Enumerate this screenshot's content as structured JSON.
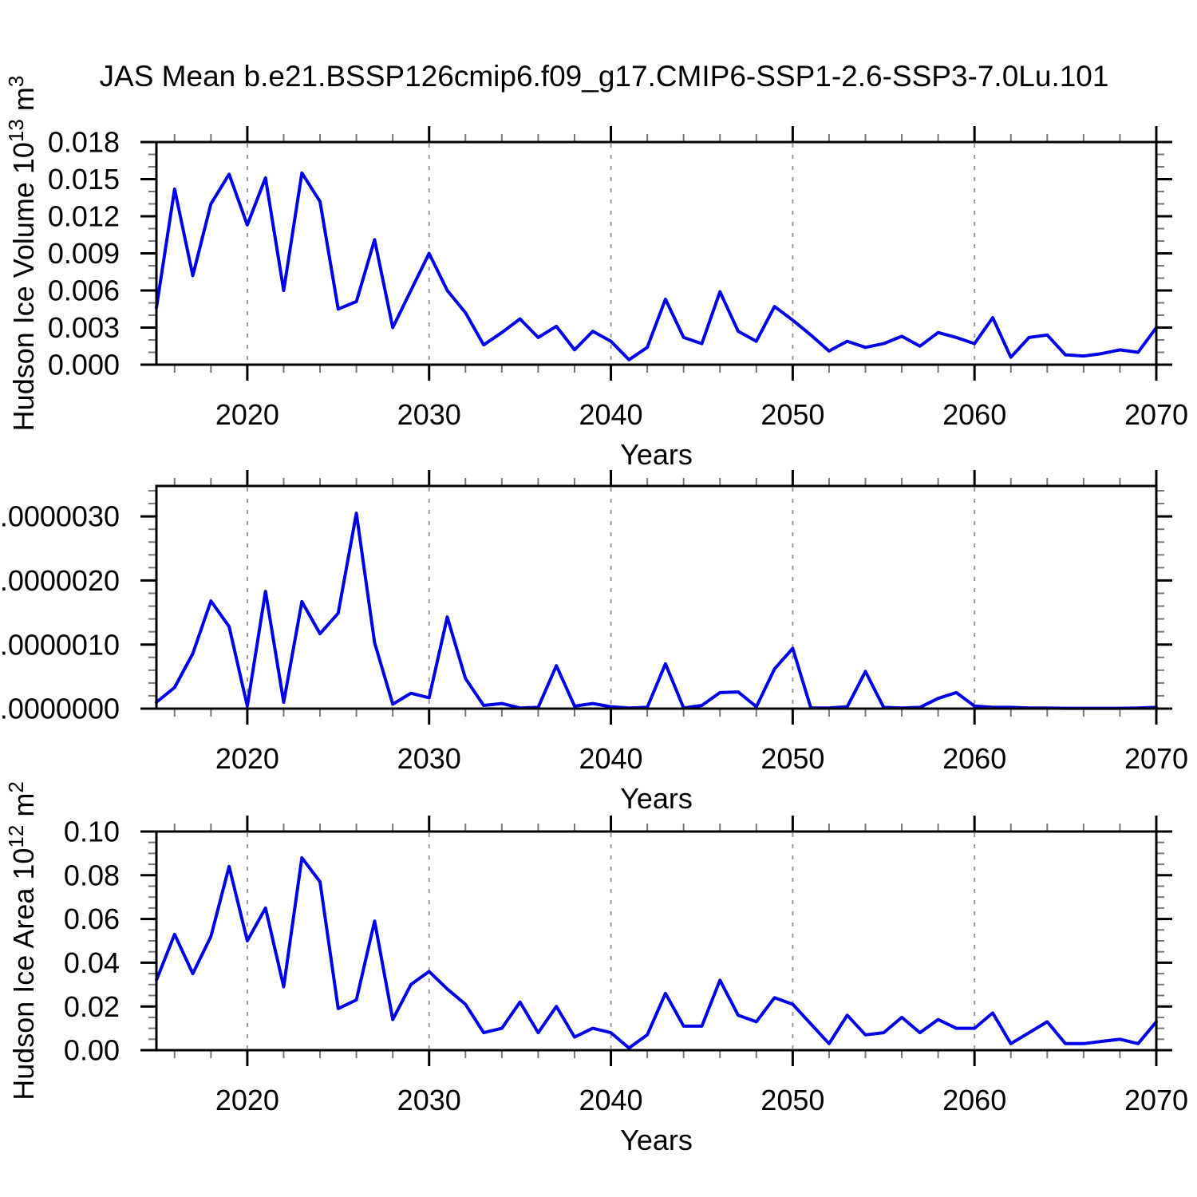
{
  "title": "JAS Mean b.e21.BSSP126cmip6.f09_g17.CMIP6-SSP1-2.6-SSP3-7.0Lu.101",
  "colors": {
    "line": "#0000e6",
    "axis": "#000000",
    "minor_tick": "#777777",
    "grid": "#9a9a9a",
    "text": "#000000",
    "background": "#ffffff"
  },
  "chart_data": [
    {
      "type": "line",
      "ylabel_segments": [
        {
          "text": "Hudson Ice Volume 10",
          "sup": false
        },
        {
          "text": "13",
          "sup": true
        },
        {
          "text": " m",
          "sup": false
        },
        {
          "text": "3",
          "sup": true
        }
      ],
      "xlabel": "Years",
      "xlim": [
        2015,
        2070
      ],
      "ylim": [
        0,
        0.018
      ],
      "y_major_step": 0.003,
      "y_minor_step": 0.001,
      "y_tick_labels": [
        "0.000",
        "0.003",
        "0.006",
        "0.009",
        "0.012",
        "0.015",
        "0.018"
      ],
      "x_major_ticks": [
        2020,
        2030,
        2040,
        2050,
        2060,
        2070
      ],
      "x_minor_start": 2016,
      "x_minor_step": 2,
      "grid_x": [
        2020,
        2030,
        2040,
        2050,
        2060
      ],
      "x": [
        2015,
        2016,
        2017,
        2018,
        2019,
        2020,
        2021,
        2022,
        2023,
        2024,
        2025,
        2026,
        2027,
        2028,
        2029,
        2030,
        2031,
        2032,
        2033,
        2034,
        2035,
        2036,
        2037,
        2038,
        2039,
        2040,
        2041,
        2042,
        2043,
        2044,
        2045,
        2046,
        2047,
        2048,
        2049,
        2050,
        2051,
        2052,
        2053,
        2054,
        2055,
        2056,
        2057,
        2058,
        2059,
        2060,
        2061,
        2062,
        2063,
        2064,
        2065,
        2066,
        2067,
        2068,
        2069,
        2070
      ],
      "values": [
        0.0046,
        0.0142,
        0.0072,
        0.013,
        0.0154,
        0.0113,
        0.0151,
        0.006,
        0.0155,
        0.0132,
        0.0045,
        0.0051,
        0.0101,
        0.003,
        0.006,
        0.009,
        0.006,
        0.0042,
        0.0016,
        0.0026,
        0.0037,
        0.0022,
        0.0031,
        0.0012,
        0.0027,
        0.0019,
        0.0004,
        0.0014,
        0.0053,
        0.0022,
        0.0017,
        0.0059,
        0.0027,
        0.0019,
        0.0047,
        0.0036,
        0.0024,
        0.0011,
        0.0019,
        0.0014,
        0.0017,
        0.0023,
        0.0015,
        0.0026,
        0.0022,
        0.0017,
        0.0038,
        0.0006,
        0.0022,
        0.0024,
        0.0008,
        0.0007,
        0.0009,
        0.0012,
        0.001,
        0.003
      ]
    },
    {
      "type": "line",
      "ylabel_segments": [],
      "xlabel": "Years",
      "xlim": [
        2015,
        2070
      ],
      "ylim": [
        0,
        3.475e-06
      ],
      "y_major_step": 1e-06,
      "y_minor_step": 2e-07,
      "y_tick_labels": [
        ".0000000",
        ".0000010",
        ".0000020",
        ".0000030"
      ],
      "x_major_ticks": [
        2020,
        2030,
        2040,
        2050,
        2060,
        2070
      ],
      "x_minor_start": 2016,
      "x_minor_step": 2,
      "grid_x": [
        2020,
        2030,
        2040,
        2050,
        2060
      ],
      "x": [
        2015,
        2016,
        2017,
        2018,
        2019,
        2020,
        2021,
        2022,
        2023,
        2024,
        2025,
        2026,
        2027,
        2028,
        2029,
        2030,
        2031,
        2032,
        2033,
        2034,
        2035,
        2036,
        2037,
        2038,
        2039,
        2040,
        2041,
        2042,
        2043,
        2044,
        2045,
        2046,
        2047,
        2048,
        2049,
        2050,
        2051,
        2052,
        2053,
        2054,
        2055,
        2056,
        2057,
        2058,
        2059,
        2060,
        2061,
        2062,
        2063,
        2064,
        2065,
        2066,
        2067,
        2068,
        2069,
        2070
      ],
      "values": [
        1e-07,
        3.3e-07,
        8.6e-07,
        1.68e-06,
        1.28e-06,
        4e-08,
        1.83e-06,
        1e-07,
        1.67e-06,
        1.17e-06,
        1.49e-06,
        3.05e-06,
        1.03e-06,
        7e-08,
        2.4e-07,
        1.7e-07,
        1.43e-06,
        4.7e-07,
        5e-08,
        8e-08,
        1e-08,
        2e-08,
        6.7e-07,
        4e-08,
        8e-08,
        3e-08,
        1e-08,
        2e-08,
        7e-07,
        1e-08,
        5e-08,
        2.5e-07,
        2.6e-07,
        3e-08,
        6.2e-07,
        9.4e-07,
        1e-08,
        1e-08,
        3e-08,
        5.8e-07,
        2e-08,
        1e-08,
        2e-08,
        1.6e-07,
        2.5e-07,
        4e-08,
        2e-08,
        2e-08,
        1e-08,
        1e-08,
        5e-09,
        5e-09,
        5e-09,
        5e-09,
        1e-08,
        2e-08
      ]
    },
    {
      "type": "line",
      "ylabel_segments": [
        {
          "text": "Hudson Ice Area 10",
          "sup": false
        },
        {
          "text": "12",
          "sup": true
        },
        {
          "text": " m",
          "sup": false
        },
        {
          "text": "2",
          "sup": true
        }
      ],
      "xlabel": "Years",
      "xlim": [
        2015,
        2070
      ],
      "ylim": [
        0,
        0.1
      ],
      "y_major_step": 0.02,
      "y_minor_step": 0.005,
      "y_tick_labels": [
        "0.00",
        "0.02",
        "0.04",
        "0.06",
        "0.08",
        "0.10"
      ],
      "x_major_ticks": [
        2020,
        2030,
        2040,
        2050,
        2060,
        2070
      ],
      "x_minor_start": 2016,
      "x_minor_step": 2,
      "grid_x": [
        2020,
        2030,
        2040,
        2050,
        2060
      ],
      "x": [
        2015,
        2016,
        2017,
        2018,
        2019,
        2020,
        2021,
        2022,
        2023,
        2024,
        2025,
        2026,
        2027,
        2028,
        2029,
        2030,
        2031,
        2032,
        2033,
        2034,
        2035,
        2036,
        2037,
        2038,
        2039,
        2040,
        2041,
        2042,
        2043,
        2044,
        2045,
        2046,
        2047,
        2048,
        2049,
        2050,
        2051,
        2052,
        2053,
        2054,
        2055,
        2056,
        2057,
        2058,
        2059,
        2060,
        2061,
        2062,
        2063,
        2064,
        2065,
        2066,
        2067,
        2068,
        2069,
        2070
      ],
      "values": [
        0.032,
        0.053,
        0.035,
        0.052,
        0.084,
        0.05,
        0.065,
        0.029,
        0.088,
        0.077,
        0.019,
        0.023,
        0.059,
        0.014,
        0.03,
        0.036,
        0.028,
        0.021,
        0.008,
        0.01,
        0.022,
        0.008,
        0.02,
        0.006,
        0.01,
        0.008,
        0.001,
        0.007,
        0.026,
        0.011,
        0.011,
        0.032,
        0.016,
        0.013,
        0.024,
        0.021,
        0.012,
        0.003,
        0.016,
        0.007,
        0.008,
        0.015,
        0.008,
        0.014,
        0.01,
        0.01,
        0.017,
        0.003,
        0.008,
        0.013,
        0.003,
        0.003,
        0.004,
        0.005,
        0.003,
        0.013
      ]
    }
  ]
}
